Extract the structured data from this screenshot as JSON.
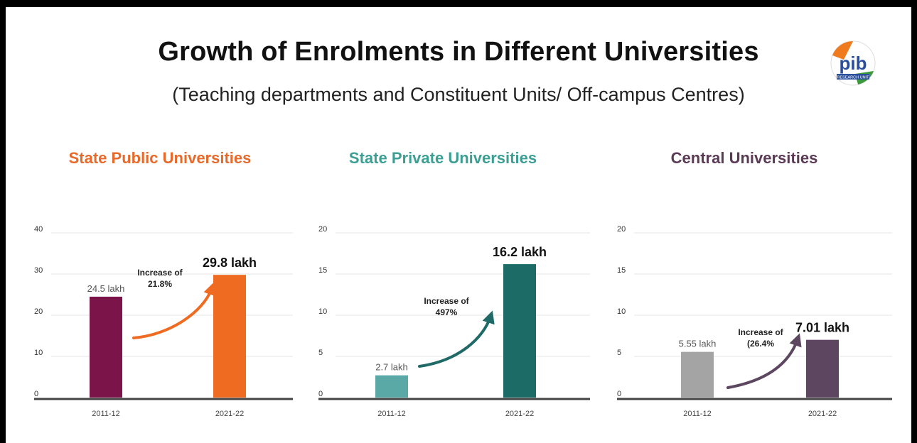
{
  "title": "Growth of Enrolments in Different Universities",
  "subtitle": "(Teaching departments and Constituent Units/ Off-campus Centres)",
  "logo_text": "pib",
  "logo_subtext": "RESEARCH UNIT",
  "chart_data": [
    {
      "type": "bar",
      "title": "State Public Universities",
      "title_color": "#e8692a",
      "categories": [
        "2011-12",
        "2021-22"
      ],
      "values": [
        24.5,
        29.8
      ],
      "value_labels": [
        "24.5 lakh",
        "29.8 lakh"
      ],
      "bar_colors": [
        "#7b1449",
        "#f06b22"
      ],
      "arrow_color": "#f06b22",
      "annotation": [
        "Increase of",
        "21.8%"
      ],
      "ylim": [
        0,
        40
      ],
      "yticks": [
        "0",
        "10",
        "20",
        "30",
        "40"
      ],
      "grid": true
    },
    {
      "type": "bar",
      "title": "State Private Universities",
      "title_color": "#3c9f94",
      "categories": [
        "2011-12",
        "2021-22"
      ],
      "values": [
        2.7,
        16.2
      ],
      "value_labels": [
        "2.7 lakh",
        "16.2 lakh"
      ],
      "bar_colors": [
        "#5aa9a6",
        "#1c6b67"
      ],
      "arrow_color": "#1f6a66",
      "annotation": [
        "Increase of",
        "497%"
      ],
      "ylim": [
        0,
        20
      ],
      "yticks": [
        "0",
        "5",
        "10",
        "15",
        "20"
      ],
      "grid": true
    },
    {
      "type": "bar",
      "title": "Central Universities",
      "title_color": "#5b3a55",
      "categories": [
        "2011-12",
        "2021-22"
      ],
      "values": [
        5.55,
        7.01
      ],
      "value_labels": [
        "5.55 lakh",
        "7.01 lakh"
      ],
      "bar_colors": [
        "#a4a4a4",
        "#5c4660"
      ],
      "arrow_color": "#5c4660",
      "annotation": [
        "Increase of",
        "(26.4%"
      ],
      "ylim": [
        0,
        20
      ],
      "yticks": [
        "0",
        "5",
        "10",
        "15",
        "20"
      ],
      "grid": true
    }
  ]
}
